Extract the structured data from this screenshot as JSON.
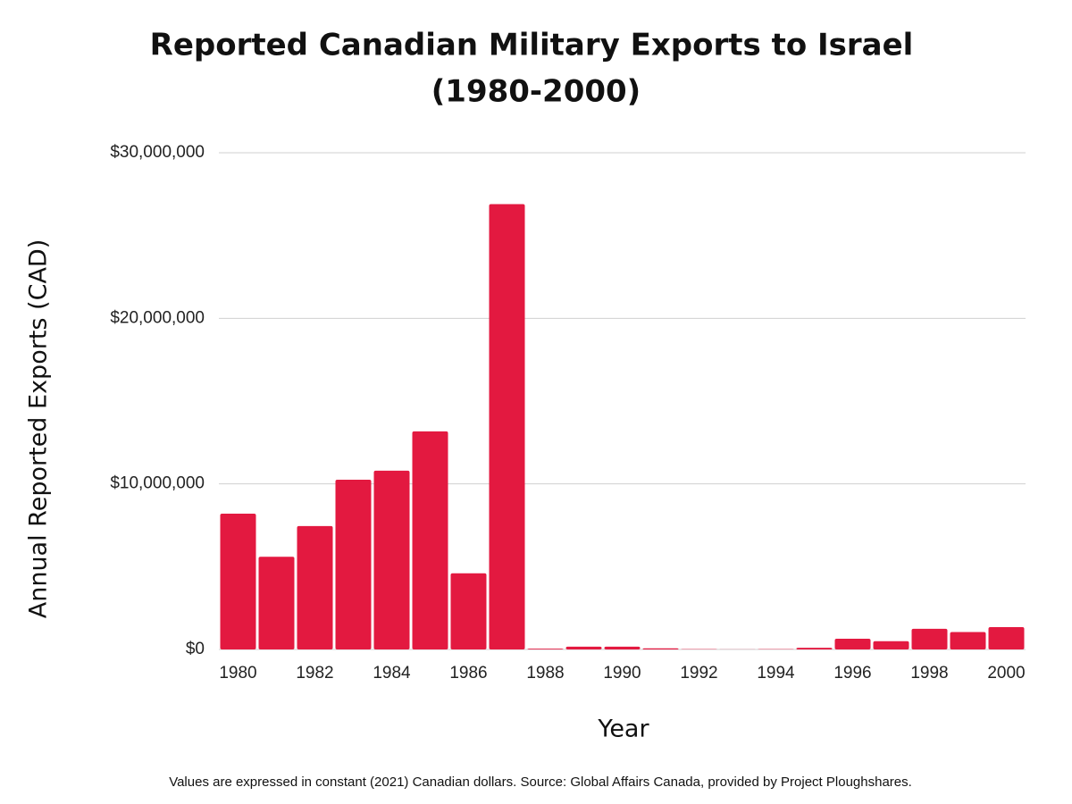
{
  "chart_data": {
    "type": "bar",
    "title": "Reported Canadian Military Exports to Israel",
    "subtitle": "(1980-2000)",
    "x_label": "Year",
    "y_label": "Annual Reported Exports (CAD)",
    "note": "Values are expressed in constant (2021) Canadian dollars. Source: Global Affairs Canada, provided by Project Ploughshares.",
    "categories": [
      "1980",
      null,
      "1982",
      null,
      "1984",
      null,
      "1986",
      null,
      "1988",
      null,
      "1990",
      null,
      "1992",
      null,
      "1994",
      null,
      "1996",
      null,
      "1998",
      null,
      "2000"
    ],
    "values": [
      8200000,
      5600000,
      7450000,
      10250000,
      10800000,
      13170000,
      4600000,
      26900000,
      50000,
      170000,
      170000,
      70000,
      20000,
      10000,
      20000,
      100000,
      650000,
      500000,
      1250000,
      1050000,
      1350000
    ],
    "color": "#e31940",
    "ylim": [
      0,
      30000000
    ],
    "yticks": [
      {
        "value": 0,
        "label": "$0"
      },
      {
        "value": 10000000,
        "label": "$10,000,000"
      },
      {
        "value": 20000000,
        "label": "$20,000,000"
      },
      {
        "value": 30000000,
        "label": "$30,000,000"
      }
    ],
    "grid": true
  }
}
